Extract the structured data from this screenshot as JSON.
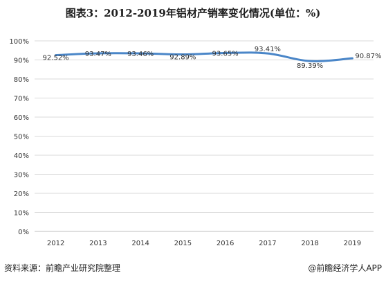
{
  "title": "图表3：2012-2019年铝材产销率变化情况(单位：%)",
  "footer": {
    "source": "资料来源：前瞻产业研究院整理",
    "credit": "@前瞻经济学人APP"
  },
  "colors": {
    "line": "#4a86c8",
    "grid": "#d9d9d9",
    "axis": "#bfbfbf",
    "text": "#333333"
  },
  "chart_data": {
    "type": "line",
    "title": "图表3：2012-2019年铝材产销率变化情况(单位：%)",
    "xlabel": "",
    "ylabel": "",
    "categories": [
      "2012",
      "2013",
      "2014",
      "2015",
      "2016",
      "2017",
      "2018",
      "2019"
    ],
    "series": [
      {
        "values": [
          92.52,
          93.47,
          93.46,
          92.89,
          93.65,
          93.41,
          89.39,
          90.87
        ],
        "labels": [
          "92.52%",
          "93.47%",
          "93.46%",
          "92.89%",
          "93.65%",
          "93.41%",
          "89.39%",
          "90.87%"
        ]
      }
    ],
    "ylim": [
      0,
      100
    ],
    "yticks": [
      "0%",
      "10%",
      "20%",
      "30%",
      "40%",
      "50%",
      "60%",
      "70%",
      "80%",
      "90%",
      "100%"
    ],
    "grid": true,
    "legend": "none"
  }
}
